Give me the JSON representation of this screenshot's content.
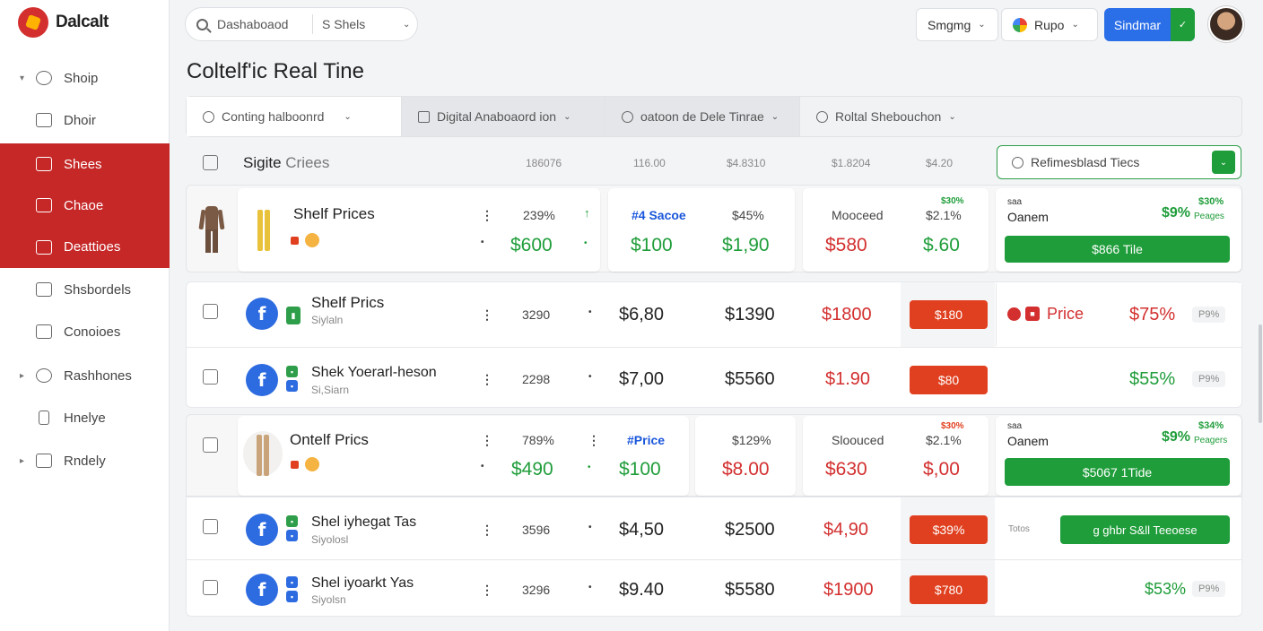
{
  "app": {
    "name": "Dalcalt"
  },
  "sidebar": {
    "items": [
      {
        "label": "Shoip",
        "icon": "gear-icon",
        "expandable": true,
        "active": false
      },
      {
        "label": "Dhoir",
        "icon": "list-icon",
        "expandable": false,
        "active": false
      },
      {
        "label": "Shees",
        "icon": "store-icon",
        "expandable": false,
        "active": true
      },
      {
        "label": "Chaoe",
        "icon": "document-icon",
        "expandable": false,
        "active": true
      },
      {
        "label": "Deattioes",
        "icon": "folder-icon",
        "expandable": false,
        "active": true
      },
      {
        "label": "Shsbordels",
        "icon": "folder-icon",
        "expandable": false,
        "active": false
      },
      {
        "label": "Conoioes",
        "icon": "table-icon",
        "expandable": false,
        "active": false
      },
      {
        "label": "Rashhones",
        "icon": "heart-icon",
        "expandable": true,
        "active": false
      },
      {
        "label": "Hnelye",
        "icon": "trash-icon",
        "expandable": false,
        "active": false
      },
      {
        "label": "Rndely",
        "icon": "calendar-icon",
        "expandable": true,
        "active": false
      }
    ]
  },
  "topbar": {
    "search_text": "Dashaboaod",
    "search_select": "S Shels",
    "pill1": "Smgmg",
    "pill2": "Rupo",
    "primary_button": "Sindmar"
  },
  "page": {
    "title": "Coltelf'ic Real Tine"
  },
  "filters": [
    {
      "label": "Conting halboonrd",
      "icon": "search-icon"
    },
    {
      "label": "Digital Anaboaord ion",
      "icon": "square-icon"
    },
    {
      "label": "oatoon de Dele Tinrae",
      "icon": "search-icon"
    },
    {
      "label": "Roltal Shebouchon",
      "icon": "search-icon"
    }
  ],
  "header": {
    "title_a": "Sigite",
    "title_b": "Criees",
    "columns": [
      "186076",
      "116.00",
      "$4.8310",
      "$1.8204",
      "$4.20"
    ],
    "search": "Refimesblasd Tiecs"
  },
  "featured": [
    {
      "name": "Shelf Prices",
      "pct": "239%",
      "price": "$600",
      "c2_label": "#4 Sacoe",
      "c2_pct": "$45%",
      "c2_a": "$100",
      "c2_b": "$1,90",
      "c3_label": "Mooceed",
      "c3_pct": "$2.1%",
      "c3_top": "$30%",
      "c3_a": "$580",
      "c3_b": "$.60",
      "c4_small": "saa",
      "c4_label": "Oanem",
      "c4_pct": "$9%",
      "c4_top": "$30%",
      "c4_sub": "Peages",
      "c4_bar": "$866 Tile"
    },
    {
      "name": "Ontelf Prics",
      "pct": "789%",
      "price": "$490",
      "c2_label": "#Price",
      "c2_pct": "$129%",
      "c2_a": "$100",
      "c2_b": "$8.00",
      "c3_label": "Sloouced",
      "c3_pct": "$2.1%",
      "c3_top": "$30%",
      "c3_a": "$630",
      "c3_b": "$,00",
      "c4_small": "saa",
      "c4_label": "Oanem",
      "c4_pct": "$9%",
      "c4_top": "$34%",
      "c4_sub": "Peagers",
      "c4_bar": "$5067 1Tide"
    }
  ],
  "rows": [
    {
      "name": "Shelf Prics",
      "sub": "Siylaln",
      "pct": "3290",
      "v1": "$6,80",
      "v2": "$1390",
      "v3": "$1800",
      "box": "$180",
      "extra_label": "Price",
      "extra_pct": "$75%",
      "tag": "P9%"
    },
    {
      "name": "Shek Yoerarl-heson",
      "sub": "Si,Siarn",
      "pct": "2298",
      "v1": "$7,00",
      "v2": "$5560",
      "v3": "$1.90",
      "box": "$80",
      "extra_pct": "$55%",
      "tag": "P9%"
    },
    {
      "name": "Shel iyhegat Tas",
      "sub": "Siyolosl",
      "pct": "3596",
      "v1": "$4,50",
      "v2": "$2500",
      "v3": "$4,90",
      "box": "$39%",
      "extra_small": "Totos",
      "bar": "g ghbr S&ll Teeoese"
    },
    {
      "name": "Shel iyoarkt Yas",
      "sub": "Siyolsn",
      "pct": "3296",
      "v1": "$9.40",
      "v2": "$5580",
      "v3": "$1900",
      "box": "$780",
      "extra_pct": "$53%",
      "tag": "P9%"
    }
  ],
  "colors": {
    "accent": "#c62828",
    "primary": "#2b6fe8",
    "positive": "#1f9d3a",
    "negative": "#d32f2f",
    "warning": "#e0401f"
  }
}
